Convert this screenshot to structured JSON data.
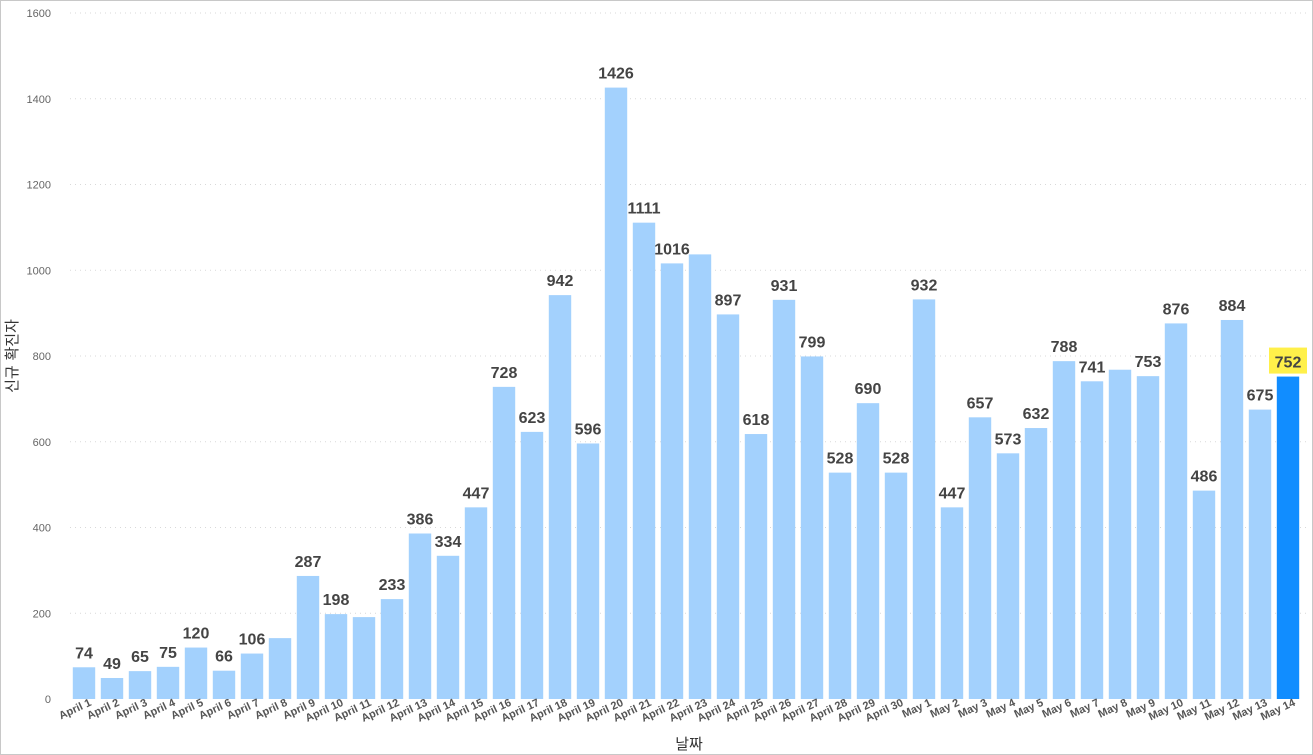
{
  "chart_data": {
    "type": "bar",
    "title": "",
    "xlabel": "날짜",
    "ylabel": "신규 확진자",
    "ylim": [
      0,
      1600
    ],
    "yticks": [
      0,
      200,
      400,
      600,
      800,
      1000,
      1200,
      1400,
      1600
    ],
    "grid": true,
    "categories": [
      "April 1",
      "April 2",
      "April 3",
      "April 4",
      "April 5",
      "April 6",
      "April 7",
      "April 8",
      "April 9",
      "April 10",
      "April 11",
      "April 12",
      "April 13",
      "April 14",
      "April 15",
      "April 16",
      "April 17",
      "April 18",
      "April 19",
      "April 20",
      "April 21",
      "April 22",
      "April 23",
      "April 24",
      "April 25",
      "April 26",
      "April 27",
      "April 28",
      "April 29",
      "April 30",
      "May 1",
      "May 2",
      "May 3",
      "May 4",
      "May 5",
      "May 6",
      "May 7",
      "May 8",
      "May 9",
      "May 10",
      "May 11",
      "May 12",
      "May 13",
      "May 14"
    ],
    "values": [
      74,
      49,
      65,
      75,
      120,
      66,
      106,
      142,
      287,
      198,
      191,
      233,
      386,
      334,
      447,
      728,
      623,
      942,
      596,
      1426,
      1111,
      1016,
      1037,
      897,
      618,
      931,
      799,
      528,
      690,
      528,
      932,
      447,
      657,
      573,
      632,
      788,
      741,
      768,
      753,
      876,
      486,
      884,
      675,
      752
    ],
    "labels": [
      "74",
      "49",
      "65",
      "75",
      "120",
      "66",
      "106",
      "",
      "287",
      "198",
      "",
      "233",
      "386",
      "334",
      "447",
      "728",
      "623",
      "942",
      "596",
      "1426",
      "1111",
      "1016",
      "",
      "897",
      "618",
      "931",
      "799",
      "528",
      "690",
      "528",
      "932",
      "447",
      "657",
      "573",
      "632",
      "788",
      "741",
      "",
      "753",
      "876",
      "486",
      "884",
      "675",
      "752"
    ],
    "highlight_index": 43,
    "colors": {
      "bar": "#a3d1fd",
      "highlight_bar": "#118dff",
      "highlight_label_bg": "#fff04a",
      "grid": "#d9d9d9",
      "label": "#444444"
    }
  }
}
